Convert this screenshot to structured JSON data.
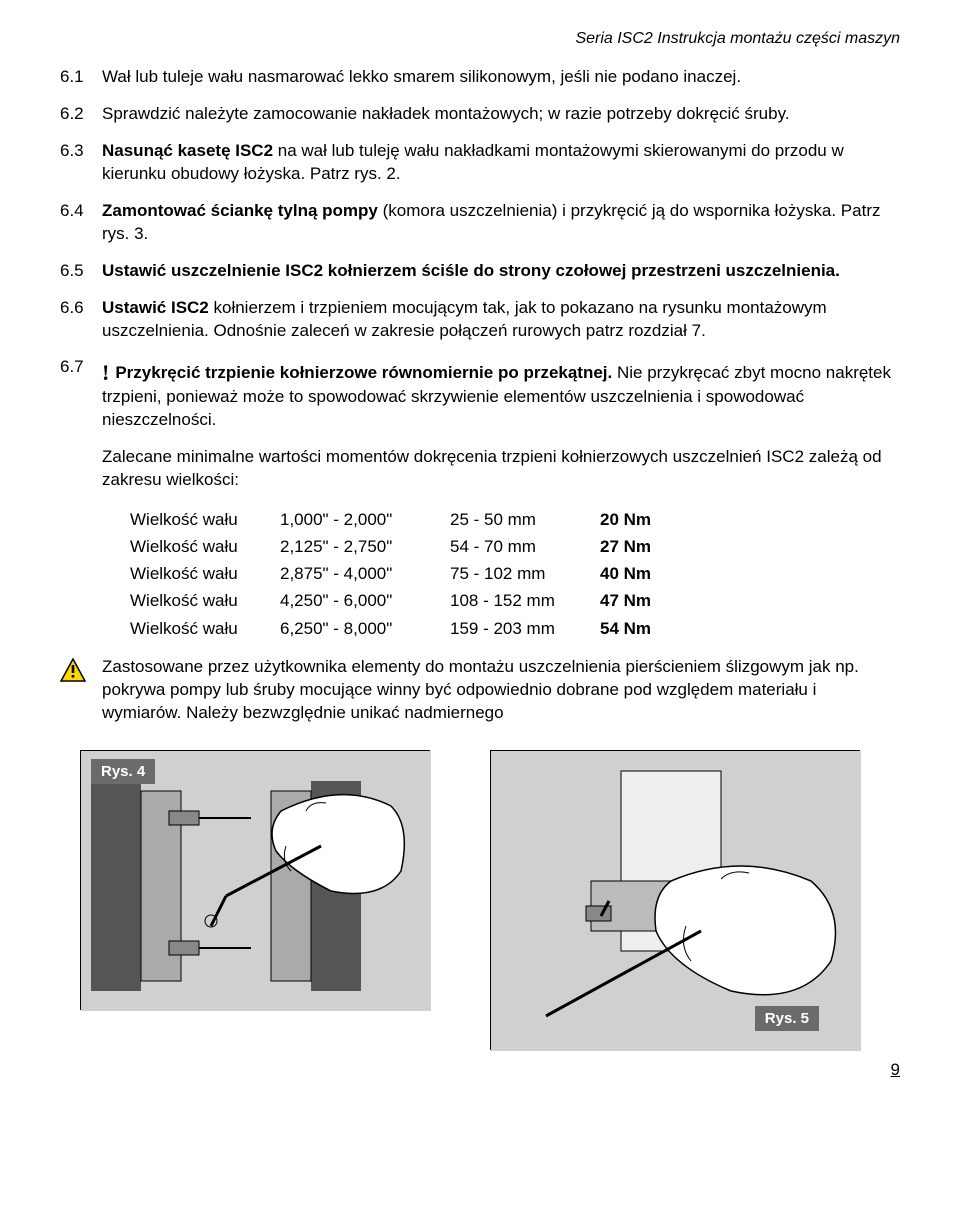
{
  "header": "Seria ISC2   Instrukcja montażu części maszyn",
  "items": [
    {
      "num": "6.1",
      "text": "Wał lub tuleje wału nasmarować lekko smarem silikonowym, jeśli nie podano inaczej."
    },
    {
      "num": "6.2",
      "text": "Sprawdzić należyte zamocowanie nakładek montażowych; w razie potrzeby dokręcić śruby."
    },
    {
      "num": "6.3",
      "bold": "Nasunąć kasetę ISC2",
      "text": " na wał lub tuleję wału nakładkami montażowymi skierowanymi do przodu w kierunku obudowy łożyska. Patrz rys. 2."
    },
    {
      "num": "6.4",
      "bold": "Zamontować ściankę tylną pompy",
      "text": " (komora uszczelnienia) i przykręcić ją do wspornika łożyska. Patrz rys. 3."
    },
    {
      "num": "6.5",
      "bold": "Ustawić uszczelnienie ISC2 kołnierzem ściśle do strony czołowej przestrzeni uszczelnienia.",
      "text": ""
    },
    {
      "num": "6.6",
      "bold": "Ustawić ISC2",
      "text": " kołnierzem i trzpieniem mocującym tak, jak to pokazano na rysunku montażowym uszczelnienia. Odnośnie zaleceń w zakresie połączeń rurowych patrz rozdział 7."
    },
    {
      "num": "6.7",
      "excl": true,
      "bold": "Przykręcić trzpienie kołnierzowe równomiernie po przekątnej.",
      "text": " Nie przykręcać zbyt mocno nakrętek trzpieni, ponieważ może to spowodować skrzywienie elementów uszczelnienia i spowodować nieszczelności."
    }
  ],
  "torque_intro": "Zalecane minimalne wartości momentów dokręcenia trzpieni kołnierzowych uszczelnień ISC2 zależą od zakresu wielkości:",
  "torque_label": "Wielkość wału",
  "torque": [
    {
      "range": "1,000\" - 2,000\"",
      "mm": "25 -  50 mm",
      "nm": "20 Nm"
    },
    {
      "range": "2,125\" - 2,750\"",
      "mm": "54 -  70 mm",
      "nm": "27 Nm"
    },
    {
      "range": "2,875\" - 4,000\"",
      "mm": "75 - 102 mm",
      "nm": "40 Nm"
    },
    {
      "range": "4,250\" - 6,000\"",
      "mm": "108 - 152 mm",
      "nm": "47 Nm"
    },
    {
      "range": "6,250\" - 8,000\"",
      "mm": "159 - 203 mm",
      "nm": "54 Nm"
    }
  ],
  "warning_text": "Zastosowane przez użytkownika elementy do montażu uszczelnienia pierścieniem ślizgowym jak np. pokrywa pompy lub śruby mocujące winny być odpowiednio dobrane pod względem materiału i wymiarów. Należy bezwzględnie unikać nadmiernego",
  "fig4": "Rys. 4",
  "fig5": "Rys. 5",
  "page": "9"
}
